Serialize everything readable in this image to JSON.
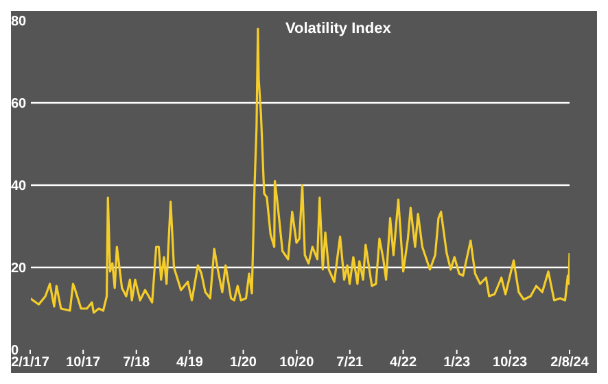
{
  "chart_data": {
    "type": "line",
    "title": "Volatility Index",
    "x": [
      "2017-01-02",
      "2017-02-15",
      "2017-03-21",
      "2017-04-13",
      "2017-05-05",
      "2017-05-17",
      "2017-06-09",
      "2017-07-25",
      "2017-08-10",
      "2017-08-18",
      "2017-09-20",
      "2017-10-20",
      "2017-11-15",
      "2017-11-24",
      "2017-12-20",
      "2018-01-12",
      "2018-01-30",
      "2018-02-05",
      "2018-02-16",
      "2018-02-28",
      "2018-03-12",
      "2018-03-23",
      "2018-04-18",
      "2018-05-10",
      "2018-05-29",
      "2018-06-08",
      "2018-06-25",
      "2018-07-20",
      "2018-08-15",
      "2018-09-20",
      "2018-10-11",
      "2018-10-24",
      "2018-11-05",
      "2018-11-20",
      "2018-12-03",
      "2018-12-24",
      "2019-01-10",
      "2019-02-15",
      "2019-03-22",
      "2019-04-12",
      "2019-05-13",
      "2019-05-31",
      "2019-06-20",
      "2019-07-15",
      "2019-08-05",
      "2019-08-23",
      "2019-09-15",
      "2019-10-02",
      "2019-10-30",
      "2019-11-15",
      "2019-12-03",
      "2019-12-20",
      "2020-01-15",
      "2020-01-31",
      "2020-02-14",
      "2020-02-28",
      "2020-03-09",
      "2020-03-16",
      "2020-03-20",
      "2020-04-01",
      "2020-04-17",
      "2020-05-01",
      "2020-05-20",
      "2020-06-08",
      "2020-06-11",
      "2020-06-26",
      "2020-07-20",
      "2020-08-18",
      "2020-09-08",
      "2020-09-30",
      "2020-10-15",
      "2020-10-30",
      "2020-11-12",
      "2020-12-01",
      "2020-12-21",
      "2021-01-15",
      "2021-01-27",
      "2021-02-12",
      "2021-02-25",
      "2021-03-15",
      "2021-04-12",
      "2021-05-12",
      "2021-06-02",
      "2021-06-18",
      "2021-06-30",
      "2021-07-19",
      "2021-08-09",
      "2021-08-19",
      "2021-09-07",
      "2021-09-20",
      "2021-10-22",
      "2021-11-12",
      "2021-11-30",
      "2021-12-20",
      "2022-01-03",
      "2022-01-24",
      "2022-02-10",
      "2022-03-07",
      "2022-04-01",
      "2022-04-25",
      "2022-05-09",
      "2022-06-01",
      "2022-06-16",
      "2022-07-08",
      "2022-08-16",
      "2022-09-12",
      "2022-09-29",
      "2022-10-12",
      "2022-11-10",
      "2022-12-01",
      "2022-12-20",
      "2023-01-13",
      "2023-02-02",
      "2023-03-13",
      "2023-04-05",
      "2023-05-01",
      "2023-05-31",
      "2023-06-16",
      "2023-07-14",
      "2023-08-18",
      "2023-09-08",
      "2023-10-20",
      "2023-11-15",
      "2023-12-11",
      "2024-01-15",
      "2024-02-13",
      "2024-03-15",
      "2024-04-15",
      "2024-05-15",
      "2024-06-15",
      "2024-07-10",
      "2024-07-24",
      "2024-07-29",
      "2024-08-02"
    ],
    "series": [
      {
        "color": "#f5cd2a",
        "values": [
          12.5,
          11,
          13,
          16,
          10.5,
          15.5,
          10,
          9.5,
          16,
          15,
          10,
          10,
          11.5,
          9,
          10,
          9.5,
          13,
          37,
          19,
          21,
          15,
          25,
          15,
          13,
          17,
          12,
          17,
          12,
          14.5,
          11.5,
          25,
          25,
          17,
          22.5,
          16,
          36,
          20,
          14.5,
          16.5,
          12,
          20.5,
          18.5,
          14,
          12.5,
          24.5,
          19.5,
          14,
          20.5,
          12.5,
          12,
          15.5,
          12,
          12.5,
          18.5,
          13.7,
          40,
          54,
          78,
          66,
          57,
          38,
          37,
          28,
          25,
          41,
          35,
          24,
          22,
          33.5,
          26,
          27,
          40,
          23,
          21,
          25,
          22,
          37,
          19.5,
          28.5,
          19.5,
          16.5,
          27.5,
          17,
          20.5,
          16,
          22.5,
          16,
          21.5,
          17,
          25.5,
          15.5,
          16,
          27,
          22,
          17,
          32,
          23,
          36.5,
          19,
          27,
          34.5,
          25,
          33,
          25,
          19.5,
          23,
          32,
          33.5,
          23.5,
          19.5,
          22.5,
          18.5,
          18,
          26.5,
          18.5,
          16,
          17.5,
          13,
          13.5,
          17.5,
          13.5,
          21.7,
          14,
          12.2,
          13,
          15.5,
          14,
          19,
          12,
          12.5,
          12,
          18,
          16,
          23.5
        ]
      }
    ],
    "xlim": [
      "2017-01-02",
      "2024-08-02"
    ],
    "xticks": [
      {
        "value": "2017-01-02",
        "label": "2/1/17"
      },
      {
        "value": "2017-10-01",
        "label": "10/17"
      },
      {
        "value": "2018-07-01",
        "label": "7/18"
      },
      {
        "value": "2019-04-01",
        "label": "4/19"
      },
      {
        "value": "2020-01-01",
        "label": "1/20"
      },
      {
        "value": "2020-10-01",
        "label": "10/20"
      },
      {
        "value": "2021-07-01",
        "label": "7/21"
      },
      {
        "value": "2022-04-01",
        "label": "4/22"
      },
      {
        "value": "2023-01-01",
        "label": "1/23"
      },
      {
        "value": "2023-10-01",
        "label": "10/23"
      },
      {
        "value": "2024-08-02",
        "label": "2/8/24"
      }
    ],
    "ylim": [
      0,
      80
    ],
    "yticks": [
      0,
      20,
      40,
      60,
      80
    ],
    "grid": "y",
    "marker": "none",
    "line_style": "solid"
  }
}
